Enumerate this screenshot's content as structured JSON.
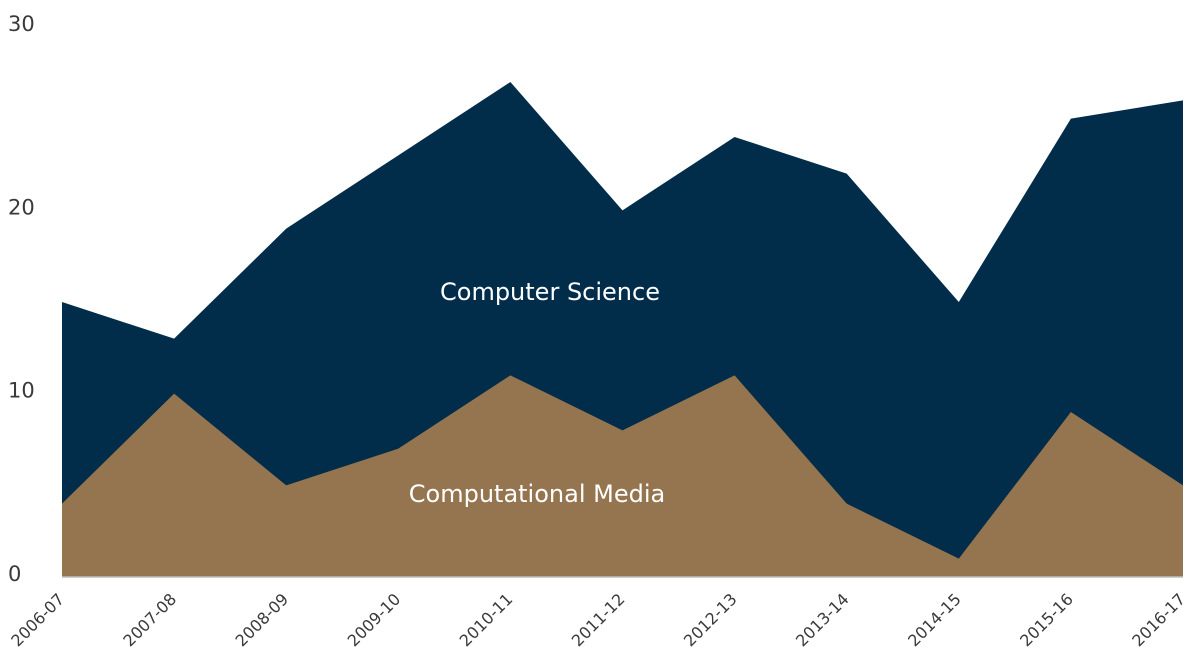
{
  "chart_data": {
    "type": "area",
    "categories": [
      "2006-07",
      "2007-08",
      "2008-09",
      "2009-10",
      "2010-11",
      "2011-12",
      "2012-13",
      "2013-14",
      "2014-15",
      "2015-16",
      "2016-17"
    ],
    "series": [
      {
        "name": "Computer Science",
        "color": "#012d4a",
        "values": [
          15,
          13,
          19,
          23,
          27,
          20,
          24,
          22,
          15,
          25,
          26
        ]
      },
      {
        "name": "Computational Media",
        "color": "#94754f",
        "values": [
          4,
          10,
          5,
          7,
          11,
          8,
          11,
          4,
          1,
          9,
          5
        ]
      }
    ],
    "ylim": [
      0,
      30
    ],
    "yticks": [
      0,
      10,
      20,
      30
    ],
    "grid": false
  }
}
